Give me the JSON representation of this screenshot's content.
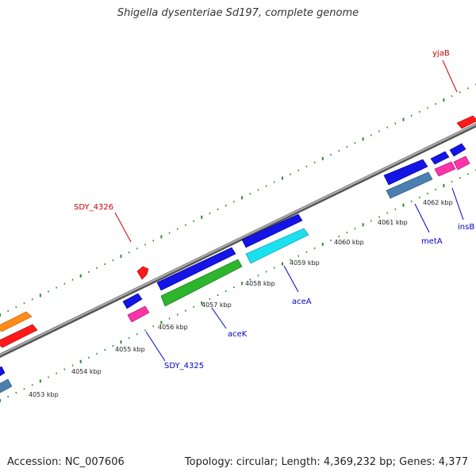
{
  "title": "Shigella dysenteriae Sd197, complete genome",
  "footer": {
    "accession": "Accession: NC_007606",
    "summary": "Topology: circular; Length: 4,369,232 bp; Genes: 4,377"
  },
  "colors": {
    "forward_cds": "#1414e6",
    "reverse_cds": "#ff1a1a",
    "gene_green": "#2db52d",
    "gene_cyan": "#1ae0f0",
    "gene_steel": "#4a7fb0",
    "gene_pink": "#ff33aa",
    "gene_orange": "#ff8c1a",
    "tick": "#2e8b2e",
    "backbone": "#888888",
    "label_red": "#cc0000",
    "label_blue": "#0000cc"
  },
  "scale_labels": [
    "4053 kbp",
    "4054 kbp",
    "4055 kbp",
    "4056 kbp",
    "4057 kbp",
    "4058 kbp",
    "4059 kbp",
    "4060 kbp",
    "4061 kbp",
    "4062 kbp"
  ],
  "gene_labels": {
    "yjaB": "yjaB",
    "SDY_4326": "SDY_4326",
    "SDY_4325": "SDY_4325",
    "aceK": "aceK",
    "aceA": "aceA",
    "metA": "metA",
    "insB": "insB"
  }
}
